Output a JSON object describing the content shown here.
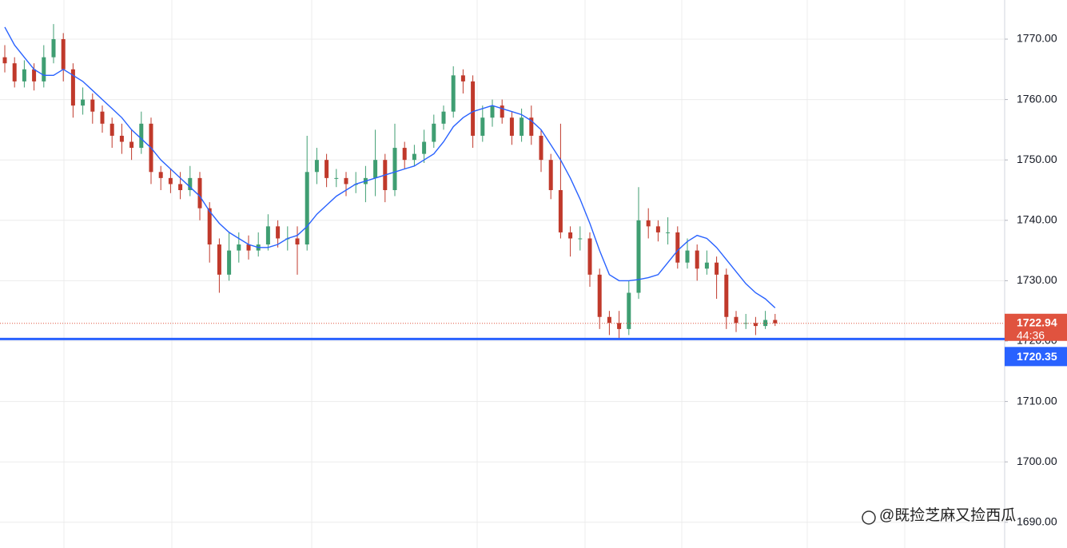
{
  "chart_data": {
    "type": "candlestick",
    "open": [
      1767,
      1766,
      1763,
      1765,
      1763,
      1767,
      1770,
      1765,
      1759,
      1760,
      1758,
      1756,
      1754,
      1753,
      1752,
      1756,
      1748,
      1747,
      1746,
      1745,
      1747,
      1742,
      1736,
      1731,
      1735,
      1736,
      1735,
      1736,
      1739,
      1737,
      1737,
      1736,
      1748,
      1750,
      1747,
      1747,
      1746,
      1746,
      1747,
      1750,
      1745,
      1752,
      1750,
      1751,
      1753,
      1756,
      1758,
      1764,
      1763,
      1754,
      1757,
      1759,
      1757,
      1754,
      1757,
      1754,
      1750,
      1745,
      1738,
      1737,
      1737,
      1731,
      1724,
      1723,
      1722,
      1728,
      1740,
      1739,
      1738,
      1738,
      1733,
      1735,
      1732,
      1733,
      1731,
      1724,
      1723,
      1723,
      1722.5,
      1723.5
    ],
    "high": [
      1769,
      1767,
      1766.5,
      1766,
      1769,
      1772.5,
      1771,
      1766,
      1762,
      1761,
      1759,
      1757,
      1756,
      1755,
      1758,
      1757,
      1749,
      1748.5,
      1748,
      1749,
      1748,
      1743,
      1737,
      1738,
      1738,
      1737.5,
      1738,
      1741,
      1740,
      1739,
      1739,
      1754,
      1752,
      1751,
      1748.5,
      1748,
      1748,
      1749,
      1755,
      1751,
      1756,
      1753,
      1752.5,
      1755,
      1757.5,
      1759,
      1765.5,
      1765,
      1764,
      1759,
      1760,
      1760,
      1758,
      1758.5,
      1759,
      1755,
      1751,
      1756,
      1739,
      1739,
      1738,
      1732,
      1725,
      1725,
      1730,
      1745.5,
      1742,
      1740,
      1740.5,
      1739,
      1737,
      1736,
      1735,
      1734,
      1732,
      1725,
      1724.5,
      1724,
      1725,
      1724.5
    ],
    "low": [
      1764.5,
      1762,
      1762,
      1761.5,
      1762,
      1766,
      1763,
      1757,
      1757.5,
      1756,
      1754.5,
      1752,
      1751,
      1750,
      1751,
      1746,
      1745,
      1744.5,
      1743.5,
      1744,
      1740,
      1733,
      1728,
      1730,
      1733,
      1733.5,
      1734,
      1735,
      1735.5,
      1735,
      1731,
      1735,
      1746,
      1745.5,
      1745.5,
      1744,
      1744.5,
      1743,
      1744,
      1743,
      1744,
      1748.5,
      1749,
      1749.5,
      1752,
      1755,
      1757,
      1761,
      1752,
      1753,
      1755.5,
      1756,
      1752.5,
      1753,
      1752.5,
      1748,
      1743.5,
      1737,
      1734,
      1735,
      1729,
      1722,
      1721,
      1720.5,
      1721,
      1727,
      1737,
      1736.5,
      1736,
      1732,
      1732,
      1730,
      1731,
      1727,
      1722,
      1721.5,
      1722,
      1721,
      1722,
      1722.5
    ],
    "close": [
      1766,
      1763,
      1765,
      1763,
      1767,
      1770,
      1765,
      1759,
      1760,
      1758,
      1756,
      1754,
      1753,
      1752,
      1756,
      1748,
      1747,
      1746,
      1745,
      1747,
      1742,
      1736,
      1731,
      1735,
      1736,
      1735,
      1736,
      1739,
      1737,
      1737,
      1736,
      1748,
      1750,
      1747,
      1747,
      1746,
      1746,
      1747,
      1750,
      1745,
      1752,
      1750,
      1751,
      1753,
      1756,
      1758,
      1764,
      1763,
      1754,
      1757,
      1759,
      1757,
      1754,
      1757,
      1754,
      1750,
      1745,
      1738,
      1737,
      1737,
      1731,
      1724,
      1723,
      1722,
      1728,
      1740,
      1739,
      1738,
      1738,
      1733,
      1735,
      1732,
      1733,
      1731,
      1724,
      1723,
      1723,
      1722.5,
      1723.5,
      1722.94
    ],
    "ma": [
      1772,
      1769,
      1767,
      1765,
      1764,
      1764,
      1765,
      1764,
      1763,
      1761.5,
      1760,
      1758.5,
      1757,
      1755,
      1753.5,
      1752,
      1750,
      1748.5,
      1747,
      1745.5,
      1744,
      1741.5,
      1739.5,
      1738,
      1737,
      1736,
      1735.5,
      1735.5,
      1736,
      1737,
      1737.5,
      1739,
      1741,
      1742.5,
      1744,
      1745,
      1746,
      1746.5,
      1747,
      1747.5,
      1748,
      1748.5,
      1749,
      1750,
      1751,
      1753,
      1755.5,
      1757,
      1758,
      1758.5,
      1759,
      1758.5,
      1758,
      1757.5,
      1756.5,
      1755,
      1752.5,
      1750,
      1747,
      1743.5,
      1739.5,
      1735,
      1731,
      1730,
      1730,
      1730.2,
      1730.5,
      1731,
      1733,
      1735,
      1736.5,
      1737.5,
      1737,
      1735.5,
      1733.5,
      1731.5,
      1729.5,
      1728,
      1727,
      1725.5
    ],
    "up_color": "#3f9e72",
    "down_color": "#c0392b",
    "ma_color": "#2962ff",
    "ylim": [
      1685.74,
      1776.48
    ],
    "yticks": [
      {
        "value": 1690,
        "label": "1690.00"
      },
      {
        "value": 1700,
        "label": "1700.00"
      },
      {
        "value": 1710,
        "label": "1710.00"
      },
      {
        "value": 1720,
        "label": "1720.00"
      },
      {
        "value": 1730,
        "label": "1730.00"
      },
      {
        "value": 1740,
        "label": "1740.00"
      },
      {
        "value": 1750,
        "label": "1750.00"
      },
      {
        "value": 1760,
        "label": "1760.00"
      },
      {
        "value": 1770,
        "label": "1770.00"
      }
    ],
    "grid": true,
    "last_price": 1722.94,
    "countdown": "44:36",
    "last_price_color": "#e0533f",
    "horizontal_line": 1720.35,
    "horizontal_line_color": "#2962ff",
    "watermark": "@既捡芝麻又捡西瓜"
  }
}
